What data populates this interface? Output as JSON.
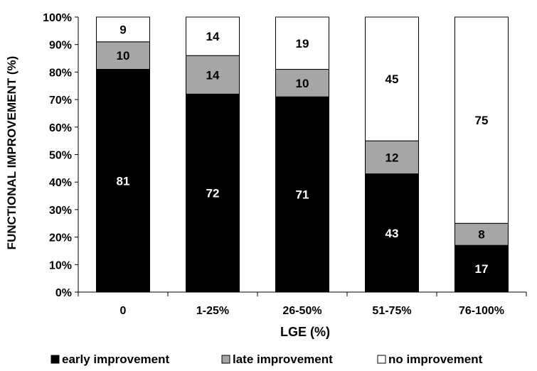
{
  "chart_data": {
    "type": "bar",
    "stacked": true,
    "categories": [
      "0",
      "1-25%",
      "26-50%",
      "51-75%",
      "76-100%"
    ],
    "series": [
      {
        "name": "early improvement",
        "values": [
          81,
          72,
          71,
          43,
          17
        ],
        "color": "#000000",
        "label_color": "#ffffff"
      },
      {
        "name": "late improvement",
        "values": [
          10,
          14,
          10,
          12,
          8
        ],
        "color": "#a6a6a6",
        "label_color": "#000000"
      },
      {
        "name": "no improvement",
        "values": [
          9,
          14,
          19,
          45,
          75
        ],
        "color": "#ffffff",
        "label_color": "#000000"
      }
    ],
    "xlabel": "LGE (%)",
    "ylabel": "FUNCTIONAL IMPROVEMENT (%)",
    "ylim": [
      0,
      100
    ],
    "yticks": [
      0,
      10,
      20,
      30,
      40,
      50,
      60,
      70,
      80,
      90,
      100
    ],
    "ytick_suffix": "%",
    "grid": false,
    "legend_position": "bottom"
  }
}
